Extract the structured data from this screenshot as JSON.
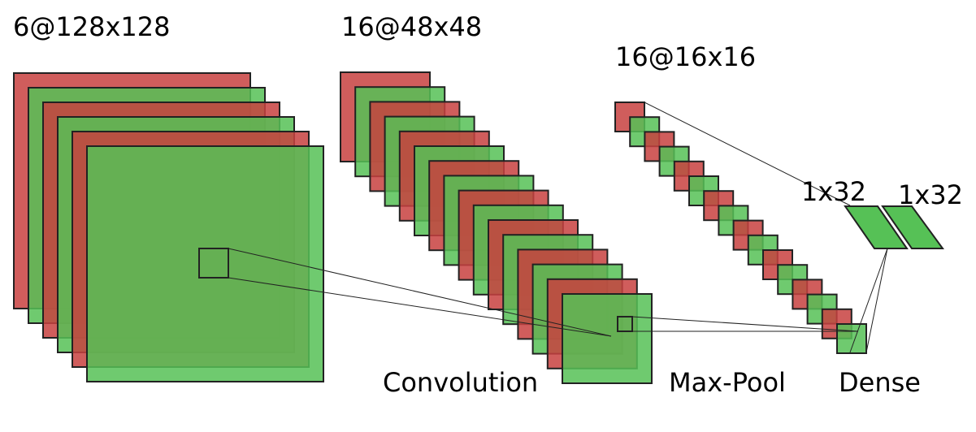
{
  "colors": {
    "red_sheet": "#c8413f",
    "green_sheet": "#56c156",
    "stroke": "#222222"
  },
  "layers": {
    "conv1": {
      "label": "6@128x128",
      "maps": 6
    },
    "conv2": {
      "label": "16@48x48",
      "maps": 16
    },
    "pool": {
      "label": "16@16x16",
      "maps": 16
    },
    "dense1": {
      "label": "1x32"
    },
    "dense2": {
      "label": "1x32"
    }
  },
  "operations": {
    "convolution": "Convolution",
    "max_pool": "Max-Pool",
    "dense": "Dense"
  }
}
